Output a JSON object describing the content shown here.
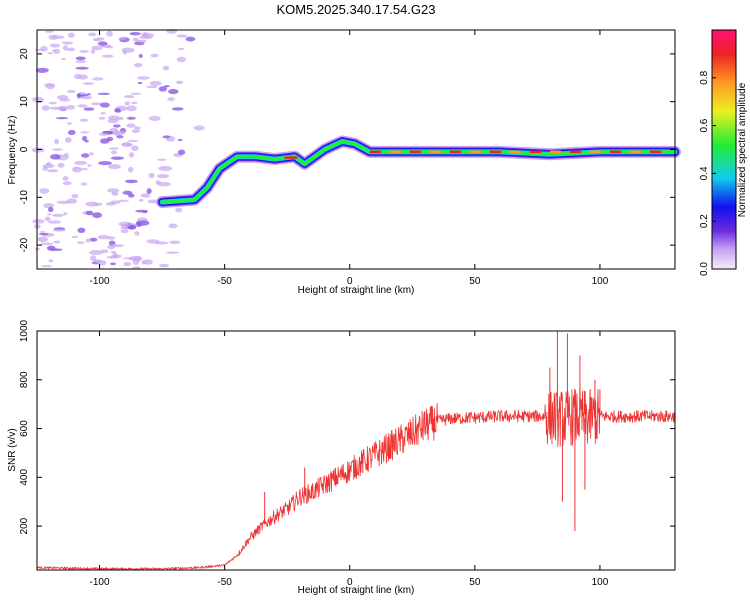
{
  "title": "KOM5.2025.340.17.54.G23",
  "chart_data": [
    {
      "type": "heatmap",
      "name": "spectrogram",
      "xlabel": "Height of straight line (km)",
      "ylabel": "Frequency (Hz)",
      "xlim": [
        -125,
        130
      ],
      "ylim": [
        -25,
        25
      ],
      "xticks": [
        -100,
        -50,
        0,
        50,
        100
      ],
      "yticks": [
        -20,
        -10,
        0,
        10,
        20
      ],
      "colorbar": {
        "label": "Normalized spectral amplitude",
        "range": [
          0.0,
          1.0
        ],
        "ticks": [
          0.0,
          0.2,
          0.4,
          0.6,
          0.8
        ]
      },
      "ridge": {
        "x": [
          -75,
          -62,
          -57,
          -52,
          -45,
          -38,
          -30,
          -22,
          -18,
          -10,
          -3,
          2,
          8,
          20,
          40,
          60,
          80,
          100,
          130
        ],
        "y": [
          -11,
          -10.5,
          -8,
          -4,
          -1.5,
          -1.5,
          -2,
          -1.5,
          -3,
          0,
          1.7,
          1.2,
          -0.5,
          -0.5,
          -0.5,
          -0.5,
          -1.0,
          -0.5,
          -0.5
        ],
        "peak_amplitude": 1.0
      },
      "noise_region_x": [
        -125,
        -57
      ]
    },
    {
      "type": "line",
      "name": "snr",
      "xlabel": "Height of straight line (km)",
      "ylabel": "SNR (v/v)",
      "xlim": [
        -125,
        130
      ],
      "ylim": [
        20,
        1000
      ],
      "xticks": [
        -100,
        -50,
        0,
        50,
        100
      ],
      "yticks": [
        200,
        400,
        600,
        800,
        1000
      ],
      "series": [
        {
          "name": "SNR",
          "color": "#ee3333",
          "x": [
            -125,
            -100,
            -75,
            -60,
            -50,
            -45,
            -40,
            -35,
            -30,
            -25,
            -20,
            -15,
            -10,
            -5,
            0,
            5,
            10,
            15,
            20,
            25,
            30,
            35,
            40,
            50,
            60,
            70,
            80,
            85,
            90,
            95,
            100,
            110,
            120,
            130
          ],
          "y": [
            30,
            25,
            25,
            30,
            40,
            80,
            150,
            200,
            240,
            270,
            320,
            340,
            370,
            400,
            430,
            460,
            490,
            520,
            550,
            580,
            610,
            630,
            640,
            645,
            650,
            650,
            650,
            640,
            650,
            640,
            650,
            650,
            650,
            650
          ]
        }
      ],
      "spikes": [
        {
          "x": -34,
          "y": 340
        },
        {
          "x": -18,
          "y": 440
        },
        {
          "x": 30,
          "y": 670
        },
        {
          "x": 80,
          "y": 850
        },
        {
          "x": 83,
          "y": 1000
        },
        {
          "x": 85,
          "y": 300
        },
        {
          "x": 87,
          "y": 990
        },
        {
          "x": 90,
          "y": 180
        },
        {
          "x": 92,
          "y": 900
        },
        {
          "x": 94,
          "y": 350
        },
        {
          "x": 98,
          "y": 800
        },
        {
          "x": 100,
          "y": 760
        }
      ]
    }
  ],
  "colors": {
    "line": "#ee3333",
    "noise": "#c9a6f2",
    "noise_dark": "#8d5be3"
  }
}
